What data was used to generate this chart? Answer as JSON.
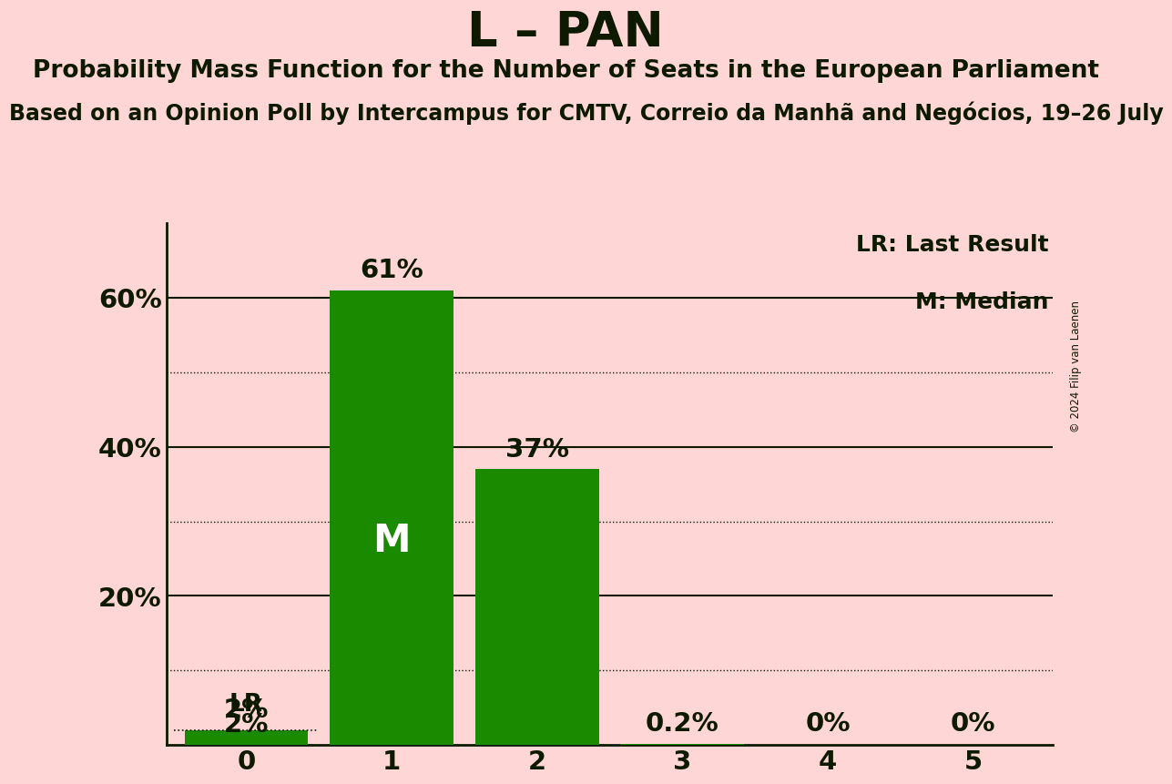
{
  "title": "L – PAN",
  "subtitle": "Probability Mass Function for the Number of Seats in the European Parliament",
  "sub_subtitle": "Based on an Opinion Poll by Intercampus for CMTV, Correio da Manhã and Negócios, 19–26 July",
  "copyright": "© 2024 Filip van Laenen",
  "categories": [
    0,
    1,
    2,
    3,
    4,
    5
  ],
  "values": [
    0.02,
    0.61,
    0.37,
    0.002,
    0.0,
    0.0
  ],
  "bar_color": "#1a8a00",
  "background_color": "#FFD6D6",
  "text_color": "#0d1a00",
  "bar_labels": [
    "2%",
    "61%",
    "37%",
    "0.2%",
    "0%",
    "0%"
  ],
  "median_bar": 1,
  "lr_bar": 0,
  "lr_value": 0.02,
  "ylim": [
    0,
    0.7
  ],
  "yticks": [
    0.0,
    0.2,
    0.4,
    0.6
  ],
  "ytick_labels": [
    "",
    "20%",
    "40%",
    "60%"
  ],
  "legend_lr": "LR: Last Result",
  "legend_m": "M: Median",
  "title_fontsize": 38,
  "subtitle_fontsize": 19,
  "sub_subtitle_fontsize": 17,
  "axis_fontsize": 21,
  "bar_label_fontsize": 21,
  "ylabel_fontsize": 21,
  "median_fontsize": 30
}
